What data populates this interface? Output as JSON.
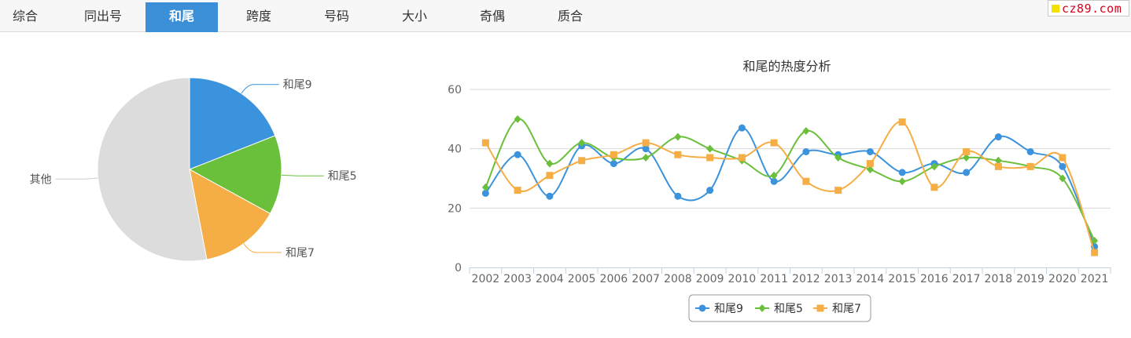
{
  "tabs": [
    {
      "label": "综合",
      "active": false
    },
    {
      "label": "同出号",
      "active": false
    },
    {
      "label": "和尾",
      "active": true
    },
    {
      "label": "跨度",
      "active": false
    },
    {
      "label": "号码",
      "active": false
    },
    {
      "label": "大小",
      "active": false
    },
    {
      "label": "奇偶",
      "active": false
    },
    {
      "label": "质合",
      "active": false
    }
  ],
  "logo": {
    "text": "cz89.com",
    "color": "#d4001a",
    "square_color": "#f5e100"
  },
  "chart_data": [
    {
      "type": "pie",
      "title": "",
      "slices": [
        {
          "label": "和尾9",
          "value": 19,
          "color": "#3a93dc"
        },
        {
          "label": "和尾5",
          "value": 14,
          "color": "#6abf3b"
        },
        {
          "label": "和尾7",
          "value": 14,
          "color": "#f5ad45"
        },
        {
          "label": "其他",
          "value": 53,
          "color": "#dcdcdc"
        }
      ]
    },
    {
      "type": "line",
      "title": "和尾的热度分析",
      "categories": [
        "2002",
        "2003",
        "2004",
        "2005",
        "2006",
        "2007",
        "2008",
        "2009",
        "2010",
        "2011",
        "2012",
        "2013",
        "2014",
        "2015",
        "2016",
        "2017",
        "2018",
        "2019",
        "2020",
        "2021"
      ],
      "ylim": [
        0,
        60
      ],
      "yticks": [
        0,
        20,
        40,
        60
      ],
      "grid": true,
      "legend_position": "bottom",
      "series": [
        {
          "name": "和尾9",
          "color": "#3a93dc",
          "marker": "circle",
          "values": [
            25,
            38,
            24,
            41,
            35,
            40,
            24,
            26,
            47,
            29,
            39,
            38,
            39,
            32,
            35,
            32,
            44,
            39,
            34,
            7
          ]
        },
        {
          "name": "和尾5",
          "color": "#6abf3b",
          "marker": "diamond",
          "values": [
            27,
            50,
            35,
            42,
            37,
            37,
            44,
            40,
            36,
            31,
            46,
            37,
            33,
            29,
            34,
            37,
            36,
            34,
            30,
            9
          ]
        },
        {
          "name": "和尾7",
          "color": "#f5ad45",
          "marker": "square",
          "values": [
            42,
            26,
            31,
            36,
            38,
            42,
            38,
            37,
            37,
            42,
            29,
            26,
            35,
            49,
            27,
            39,
            34,
            34,
            37,
            5
          ]
        }
      ]
    }
  ]
}
